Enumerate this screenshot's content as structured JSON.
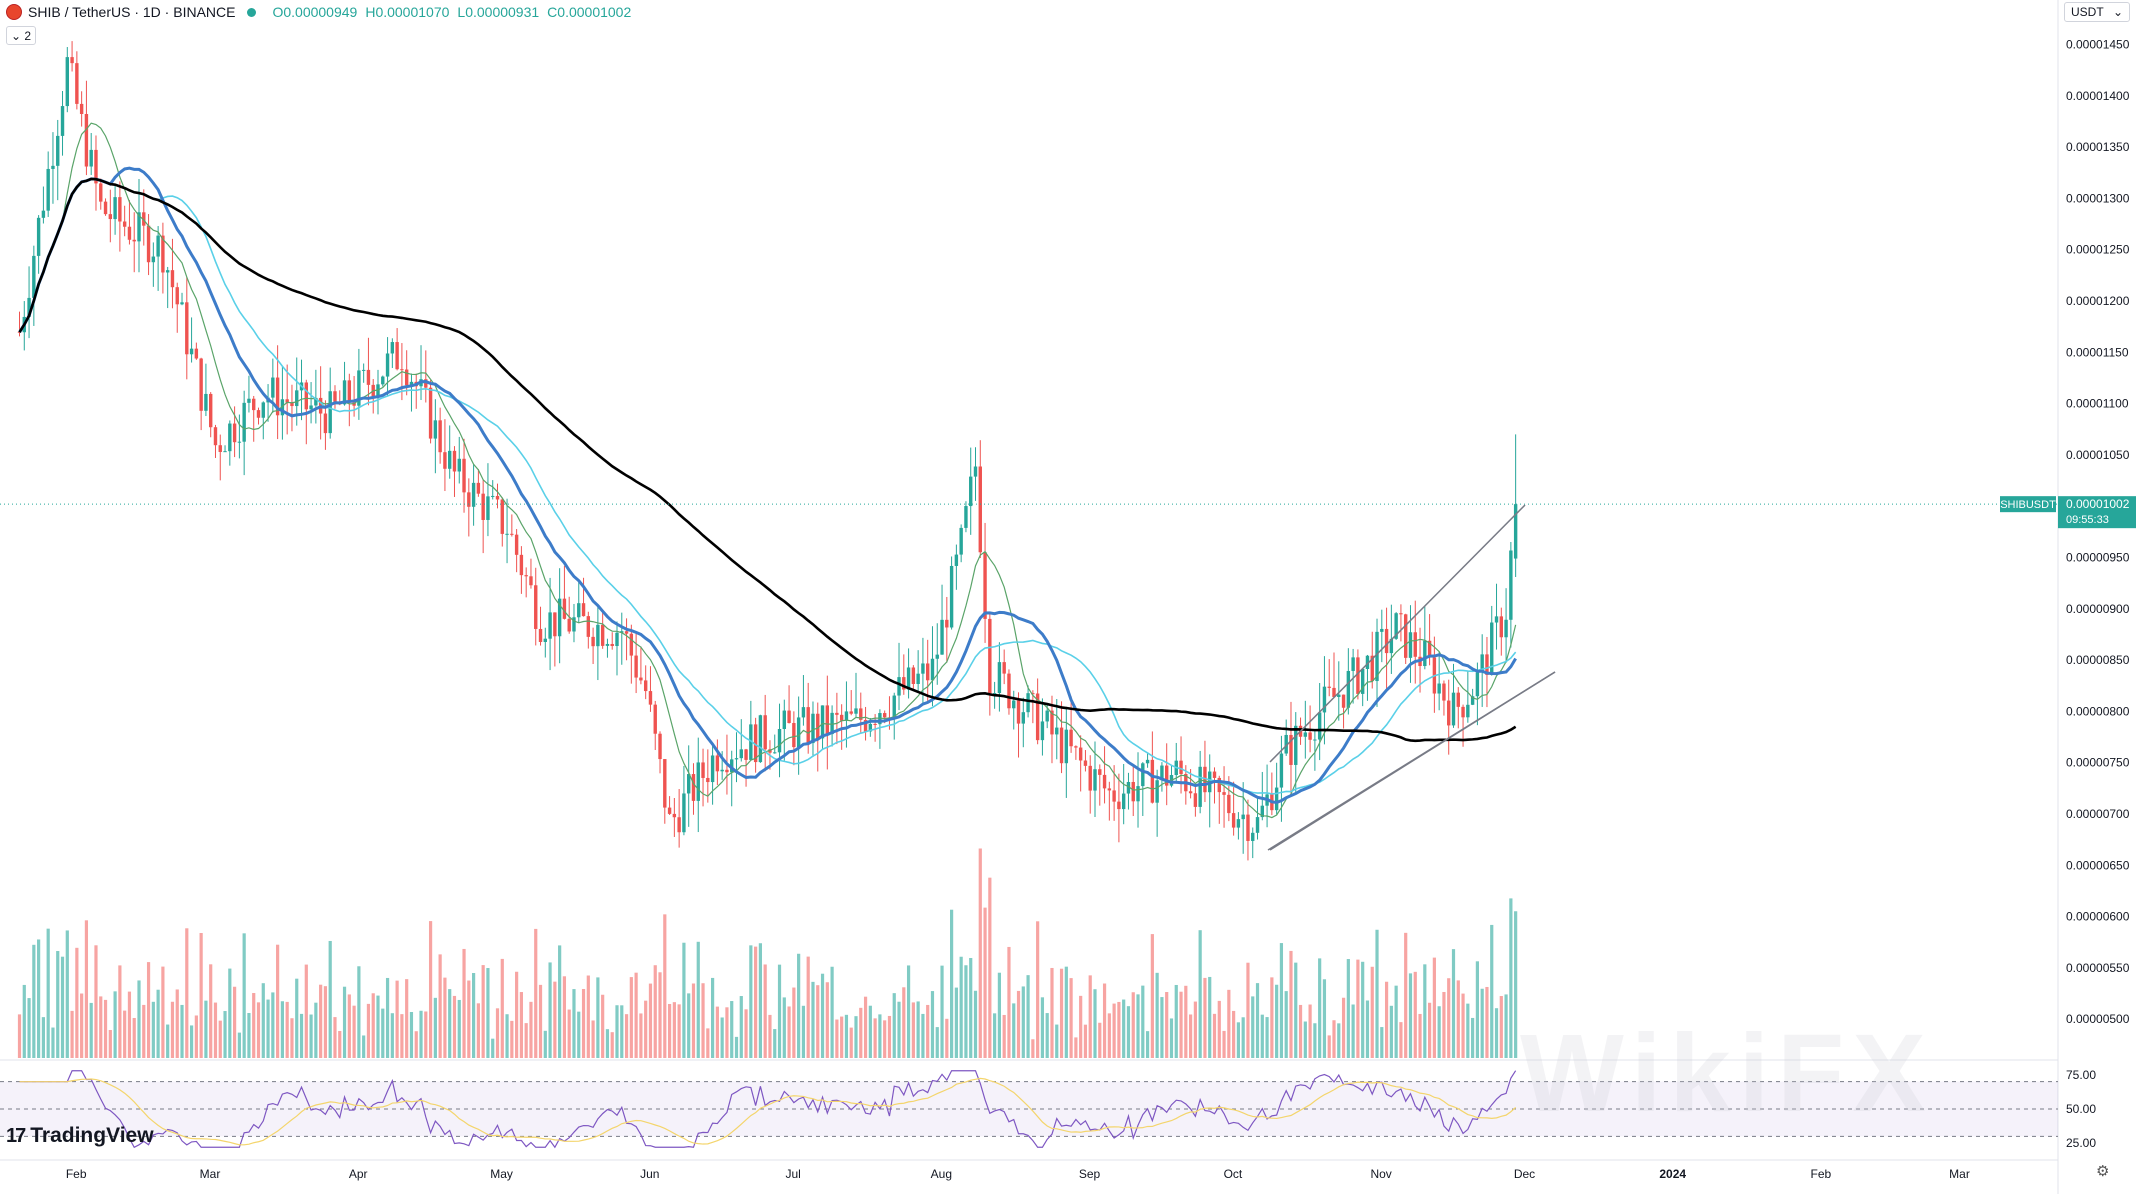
{
  "header": {
    "symbol": "SHIB / TetherUS · 1D · BINANCE",
    "open": "O0.00000949",
    "high": "H0.00001070",
    "low": "L0.00000931",
    "close": "C0.00001002",
    "collapse_label": "⌄ 2"
  },
  "currency": {
    "label": "USDT",
    "caret": "⌄"
  },
  "brand": {
    "logo_text": "17",
    "name": "TradingView"
  },
  "watermark": "WikiFX",
  "price_tag": {
    "symbol": "SHIBUSDT",
    "price": "0.00001002",
    "countdown": "09:55:33"
  },
  "colors": {
    "up": "#26a69a",
    "down": "#ef5350",
    "up_vol": "#80cbc4",
    "down_vol": "#f7a4a2",
    "ma_fast": "#5aa469",
    "ma_mid": "#3d7cc9",
    "ma_cyan": "#5ad0e8",
    "ma_long": "#000000",
    "rsi": "#7e57c2",
    "rsi_ma": "#f4d56c"
  },
  "chart_data": {
    "type": "candlestick",
    "price_axis": {
      "min": 4.7e-06,
      "max": 1.47e-05,
      "ticks": [
        "0.00001450",
        "0.00001400",
        "0.00001350",
        "0.00001300",
        "0.00001250",
        "0.00001200",
        "0.00001150",
        "0.00001100",
        "0.00001050",
        "0.00000950",
        "0.00000900",
        "0.00000850",
        "0.00000800",
        "0.00000750",
        "0.00000700",
        "0.00000650",
        "0.00000600",
        "0.00000550",
        "0.00000500"
      ]
    },
    "time_axis": {
      "labels": [
        "Feb",
        "Mar",
        "Apr",
        "May",
        "Jun",
        "Jul",
        "Aug",
        "Sep",
        "Oct",
        "Nov",
        "Dec",
        "2024",
        "Feb",
        "Mar"
      ]
    },
    "rsi_axis": {
      "ticks": [
        "75.00",
        "50.00",
        "25.00"
      ],
      "overbought": 70,
      "oversold": 30
    },
    "series_anchors": [
      {
        "date": "2023-01-26",
        "close": 1.17e-05
      },
      {
        "date": "2023-02-05",
        "close": 1.43e-05
      },
      {
        "date": "2023-02-12",
        "close": 1.29e-05
      },
      {
        "date": "2023-02-25",
        "close": 1.25e-05
      },
      {
        "date": "2023-03-08",
        "close": 1.06e-05
      },
      {
        "date": "2023-03-18",
        "close": 1.11e-05
      },
      {
        "date": "2023-04-01",
        "close": 1.09e-05
      },
      {
        "date": "2023-04-16",
        "close": 1.15e-05
      },
      {
        "date": "2023-04-27",
        "close": 1.03e-05
      },
      {
        "date": "2023-05-08",
        "close": 9.8e-06
      },
      {
        "date": "2023-05-15",
        "close": 8.9e-06
      },
      {
        "date": "2023-06-01",
        "close": 8.8e-06
      },
      {
        "date": "2023-06-06",
        "close": 8.2e-06
      },
      {
        "date": "2023-06-11",
        "close": 6.9e-06
      },
      {
        "date": "2023-06-21",
        "close": 7.6e-06
      },
      {
        "date": "2023-07-04",
        "close": 7.8e-06
      },
      {
        "date": "2023-07-20",
        "close": 7.9e-06
      },
      {
        "date": "2023-08-05",
        "close": 8.4e-06
      },
      {
        "date": "2023-08-11",
        "close": 9.6e-06
      },
      {
        "date": "2023-08-14",
        "close": 1.04e-05
      },
      {
        "date": "2023-08-17",
        "close": 8.4e-06
      },
      {
        "date": "2023-08-21",
        "close": 8.2e-06
      },
      {
        "date": "2023-09-11",
        "close": 7.2e-06
      },
      {
        "date": "2023-09-25",
        "close": 7.4e-06
      },
      {
        "date": "2023-10-12",
        "close": 6.9e-06
      },
      {
        "date": "2023-10-18",
        "close": 7.6e-06
      },
      {
        "date": "2023-10-25",
        "close": 8e-06
      },
      {
        "date": "2023-11-05",
        "close": 8.5e-06
      },
      {
        "date": "2023-11-10",
        "close": 8.8e-06
      },
      {
        "date": "2023-11-16",
        "close": 8.5e-06
      },
      {
        "date": "2023-11-22",
        "close": 8e-06
      },
      {
        "date": "2023-11-27",
        "close": 8.3e-06
      },
      {
        "date": "2023-12-03",
        "close": 9e-06
      },
      {
        "date": "2023-12-05",
        "close": 1.002e-05
      }
    ],
    "last_price": 1.002e-05
  }
}
